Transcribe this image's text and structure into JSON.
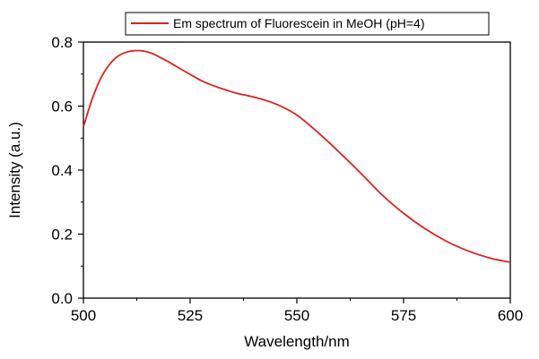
{
  "chart_data": {
    "type": "line",
    "xlabel": "Wavelength/nm",
    "ylabel": "Intensity (a.u.)",
    "xlim": [
      500,
      600
    ],
    "ylim": [
      0.0,
      0.8
    ],
    "xticks": [
      500,
      525,
      550,
      575,
      600
    ],
    "yticks": [
      0.0,
      0.2,
      0.4,
      0.6,
      0.8
    ],
    "xtick_labels": [
      "500",
      "525",
      "550",
      "575",
      "600"
    ],
    "ytick_labels": [
      "0.0",
      "0.2",
      "0.4",
      "0.6",
      "0.8"
    ],
    "grid": false,
    "legend_position": "top-center",
    "series": [
      {
        "name": "Em spectrum of Fluorescein in MeOH (pH=4)",
        "color": "#e02020",
        "x": [
          500,
          502,
          504,
          506,
          508,
          510,
          512,
          514,
          516,
          518,
          520,
          522,
          525,
          528,
          530,
          533,
          536,
          540,
          544,
          547,
          550,
          553,
          556,
          560,
          565,
          570,
          575,
          580,
          585,
          590,
          595,
          600
        ],
        "y": [
          0.535,
          0.62,
          0.685,
          0.728,
          0.755,
          0.768,
          0.773,
          0.772,
          0.765,
          0.752,
          0.738,
          0.722,
          0.699,
          0.677,
          0.666,
          0.652,
          0.64,
          0.628,
          0.612,
          0.595,
          0.572,
          0.54,
          0.505,
          0.455,
          0.39,
          0.322,
          0.265,
          0.217,
          0.178,
          0.148,
          0.126,
          0.112
        ]
      }
    ]
  }
}
